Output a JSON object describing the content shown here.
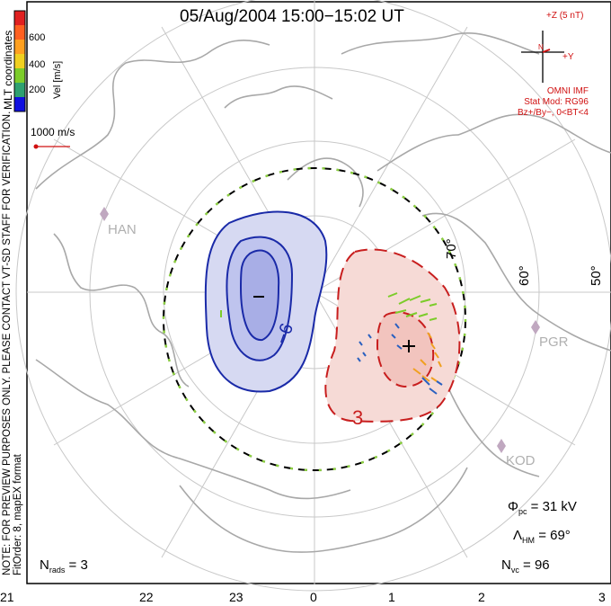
{
  "title": "05/Aug/2004 15:00−15:02 UT",
  "colorbar": {
    "label": "Vel [m/s]",
    "ticks": [
      "600",
      "400",
      "200"
    ],
    "colors": [
      "#e02020",
      "#ff8c00",
      "#f0d020",
      "#7ccc2a",
      "#2ea070",
      "#3060c0",
      "#1010e0"
    ]
  },
  "coordinates_label": "MLT coordinates",
  "scale_vector": {
    "label": "1000 m/s",
    "color": "#d01010"
  },
  "note_line1": "NOTE: FOR PREVIEW PURPOSES ONLY. PLEASE CONTACT VT-SD STAFF FOR VERIFICATION.",
  "note_line2": "FitOrder: 8,  mapEX format",
  "imf": {
    "z_label": "+Z (5 nT)",
    "y_label": "+Y",
    "n_label": "N",
    "model_lines": [
      "OMNI IMF",
      "Stat Mod: RG96",
      "Bz+/By−, 0<BT<4"
    ],
    "color": "#d01010"
  },
  "latitude_labels": [
    "70°",
    "60°",
    "50°"
  ],
  "stations": [
    "HAN",
    "PGR",
    "KOD"
  ],
  "contours": [
    {
      "label": "−6",
      "polarity": "negative",
      "color": "#1a2aa8",
      "fill": "#c8ccee"
    },
    {
      "label": "3",
      "polarity": "positive",
      "color": "#c81e1e",
      "fill": "#f4d4d0"
    }
  ],
  "stats": {
    "phi_symbol": "Φ",
    "phi_sub": "pc",
    "phi_value": " = 31  kV",
    "lambda_symbol": "Λ",
    "lambda_sub": "HM",
    "lambda_value": " = 69°",
    "nvc_symbol": "N",
    "nvc_sub": "vc",
    "nvc_value": " = 96",
    "nrads_symbol": "N",
    "nrads_sub": "rads",
    "nrads_value": " = 3"
  },
  "mlt_labels": [
    "21",
    "22",
    "23",
    "0",
    "1",
    "2",
    "3"
  ]
}
